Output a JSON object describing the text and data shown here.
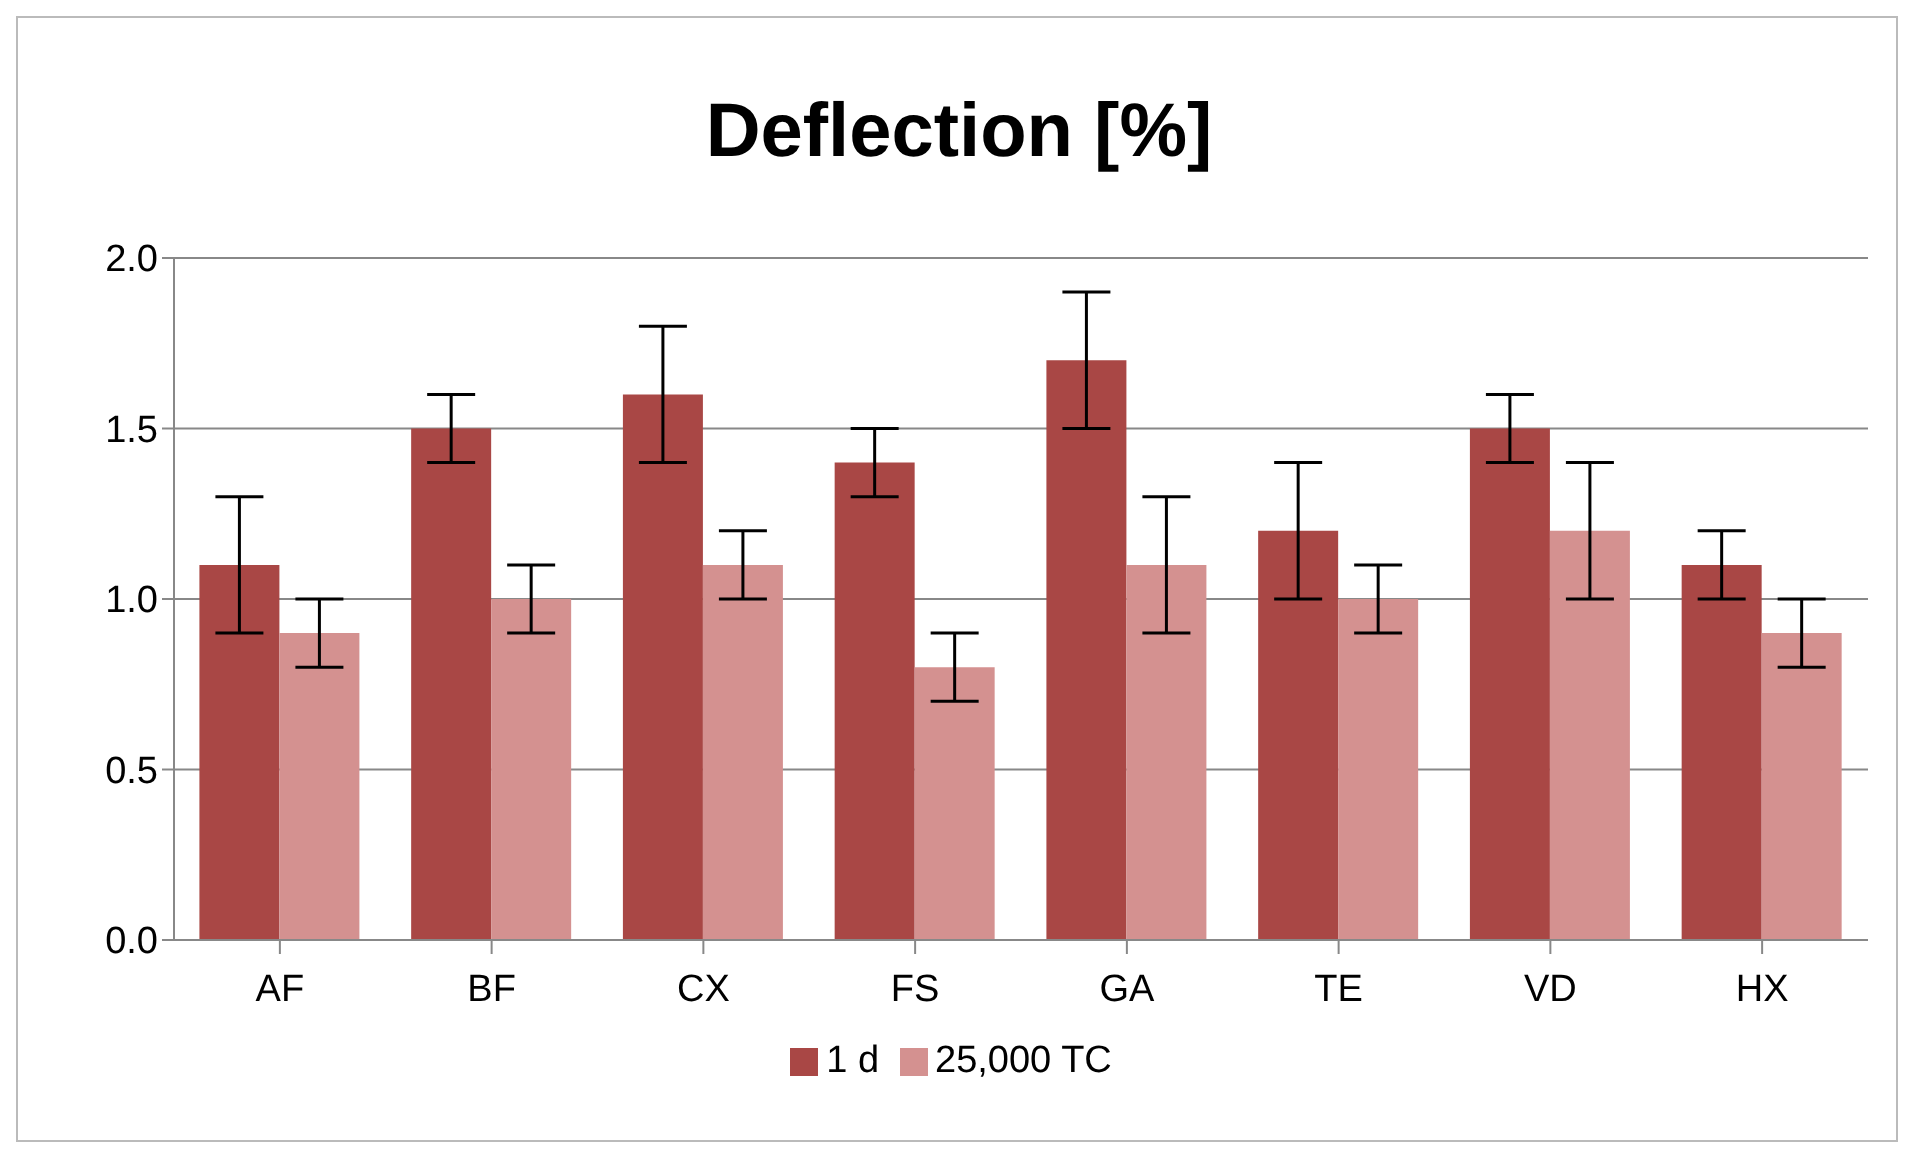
{
  "chart_data": {
    "type": "bar",
    "title": "Deflection [%]",
    "categories": [
      "AF",
      "BF",
      "CX",
      "FS",
      "GA",
      "TE",
      "VD",
      "HX"
    ],
    "series": [
      {
        "name": "1 d",
        "color": "#a94745",
        "values": [
          1.1,
          1.5,
          1.6,
          1.4,
          1.7,
          1.2,
          1.5,
          1.1
        ],
        "errors": [
          0.2,
          0.1,
          0.2,
          0.1,
          0.2,
          0.2,
          0.1,
          0.1
        ]
      },
      {
        "name": "25,000 TC",
        "color": "#d49190",
        "values": [
          0.9,
          1.0,
          1.1,
          0.8,
          1.1,
          1.0,
          1.2,
          0.9
        ],
        "errors": [
          0.1,
          0.1,
          0.1,
          0.1,
          0.2,
          0.1,
          0.2,
          0.1
        ]
      }
    ],
    "ylim": [
      0,
      2
    ],
    "yticks": [
      {
        "value": 0,
        "label": "0.0"
      },
      {
        "value": 0.5,
        "label": "0.5"
      },
      {
        "value": 1,
        "label": "1.0"
      },
      {
        "value": 1.5,
        "label": "1.5"
      },
      {
        "value": 2,
        "label": "2.0"
      }
    ],
    "grid": "y",
    "legend": "bottom"
  }
}
